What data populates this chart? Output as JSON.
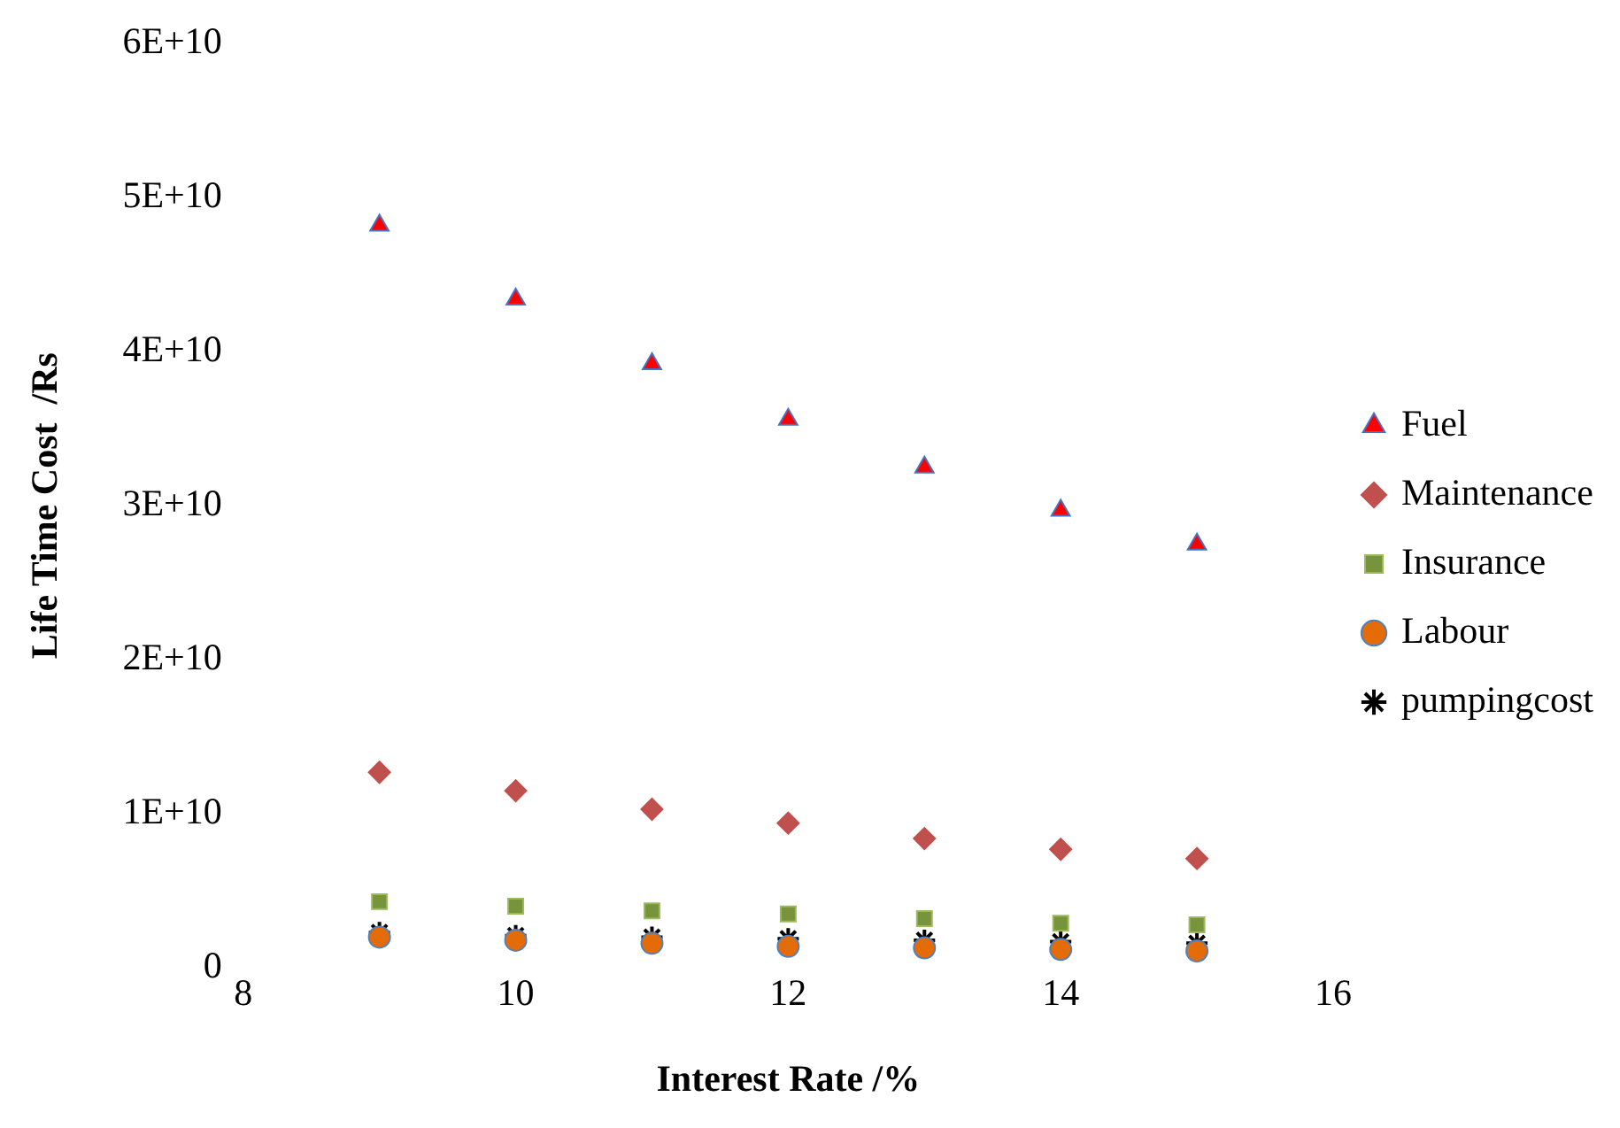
{
  "chart_data": {
    "type": "scatter",
    "xlabel": "Interest Rate /%",
    "ylabel": "Life Time Cost  /Rs",
    "x": [
      9,
      10,
      11,
      12,
      13,
      14,
      15
    ],
    "xlim": [
      8,
      16
    ],
    "xticks": [
      8,
      10,
      12,
      14,
      16
    ],
    "ylim": [
      0,
      60000000000
    ],
    "yticks": [
      0,
      {
        "value": 10000000000,
        "label": "1E+10"
      },
      {
        "value": 20000000000,
        "label": "2E+10"
      },
      {
        "value": 30000000000,
        "label": "3E+10"
      },
      {
        "value": 40000000000,
        "label": "4E+10"
      },
      {
        "value": 50000000000,
        "label": "5E+10"
      },
      {
        "value": 60000000000,
        "label": "6E+10"
      }
    ],
    "grid": false,
    "legend": "right",
    "series": [
      {
        "name": "Fuel",
        "color": "#ff0000",
        "marker": "triangle",
        "values": [
          48200000000,
          43400000000,
          39200000000,
          35600000000,
          32500000000,
          29700000000,
          27500000000
        ]
      },
      {
        "name": "Maintenance",
        "color": "#c0504d",
        "marker": "diamond",
        "values": [
          12700000000,
          11500000000,
          10300000000,
          9400000000,
          8400000000,
          7700000000,
          7100000000
        ]
      },
      {
        "name": "Insurance",
        "color": "#77933c",
        "marker": "square",
        "values": [
          4300000000,
          4000000000,
          3700000000,
          3500000000,
          3200000000,
          2900000000,
          2800000000
        ]
      },
      {
        "name": "Labour",
        "color": "#e36c09",
        "marker": "circle",
        "values": [
          2000000000,
          1800000000,
          1600000000,
          1400000000,
          1300000000,
          1200000000,
          1100000000
        ]
      },
      {
        "name": "pumpingcost",
        "color": "#000000",
        "marker": "cross",
        "values": [
          2300000000,
          2100000000,
          2000000000,
          1900000000,
          1800000000,
          1700000000,
          1600000000
        ]
      }
    ]
  }
}
